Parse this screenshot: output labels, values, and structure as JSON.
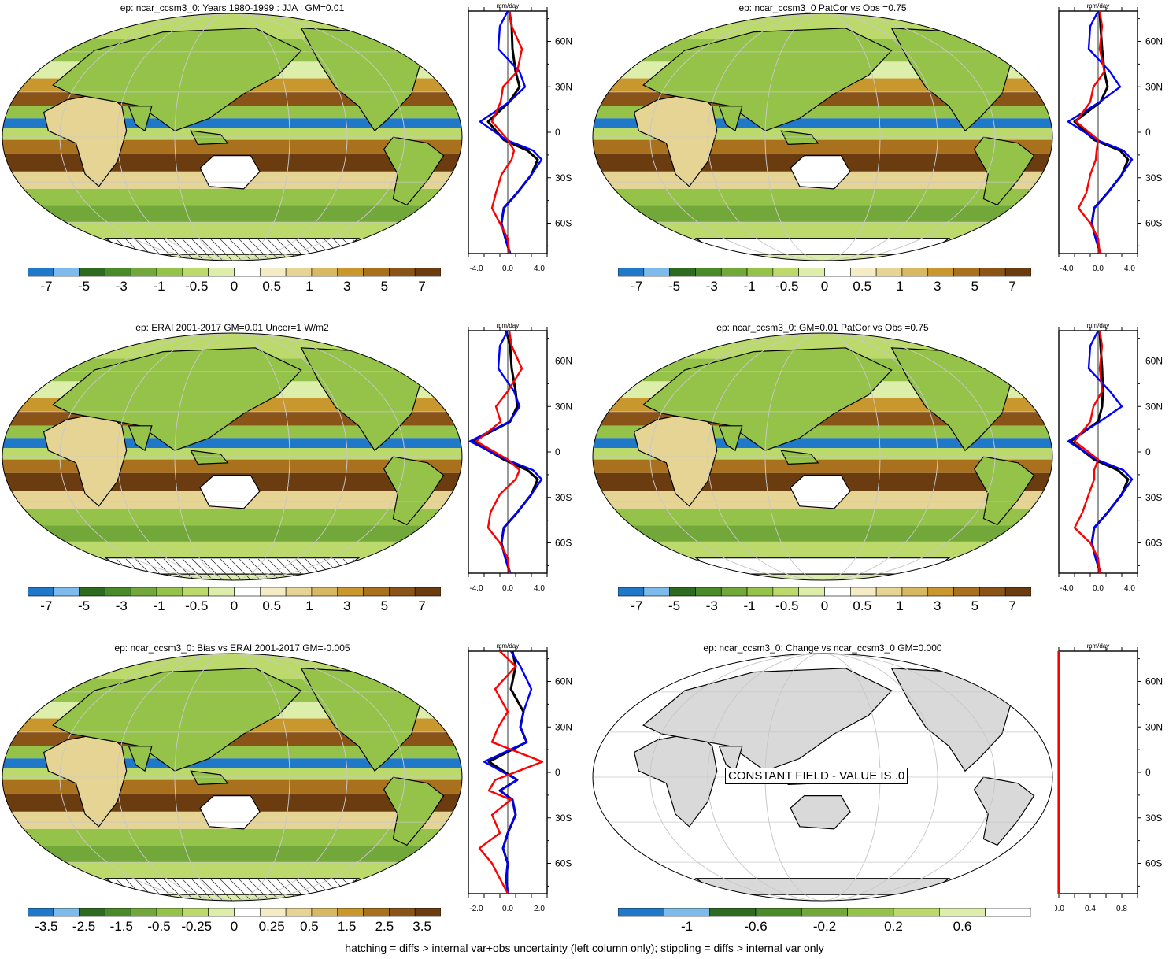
{
  "panels": [
    {
      "id": "p1",
      "title": "ep: ncar_ccsm3_0: Years 1980-1999 : JJA : GM=0.01",
      "colorbar": {
        "colors": [
          "#1f78c8",
          "#7dbcea",
          "#2e6a1f",
          "#4a8a2a",
          "#72a83a",
          "#95c34a",
          "#bcd96c",
          "#ddeeaa",
          "#ffffff",
          "#f3ecc4",
          "#e6d494",
          "#d8b860",
          "#c8972e",
          "#a9711e",
          "#8a5418",
          "#6a3c10"
        ],
        "labels": [
          "-7",
          "-5",
          "-3",
          "-1",
          "-0.5",
          "0",
          "0.5",
          "1",
          "3",
          "5",
          "7"
        ]
      },
      "profile": {
        "unit": "mm/day",
        "xticks": [
          "-4.0",
          "0.0",
          "4.0"
        ],
        "xlim": [
          -5,
          5
        ],
        "yticks": [
          "60N",
          "30N",
          "0",
          "30S",
          "60S"
        ],
        "show_overlay": false
      }
    },
    {
      "id": "p2",
      "title": "ep: ncar_ccsm3_0 PatCor vs Obs =0.75",
      "colorbar": {
        "colors": [
          "#1f78c8",
          "#7dbcea",
          "#2e6a1f",
          "#4a8a2a",
          "#72a83a",
          "#95c34a",
          "#bcd96c",
          "#ddeeaa",
          "#ffffff",
          "#f3ecc4",
          "#e6d494",
          "#d8b860",
          "#c8972e",
          "#a9711e",
          "#8a5418",
          "#6a3c10"
        ],
        "labels": [
          "-7",
          "-5",
          "-3",
          "-1",
          "-0.5",
          "0",
          "0.5",
          "1",
          "3",
          "5",
          "7"
        ]
      },
      "profile": {
        "unit": "mm/day",
        "xticks": [
          "-4.0",
          "0.0",
          "4.0"
        ],
        "xlim": [
          -5,
          5
        ],
        "yticks": [
          "60N",
          "30N",
          "0",
          "30S",
          "60S"
        ]
      }
    },
    {
      "id": "p3",
      "title": "ep: ERAI 2001-2017 GM=0.01 Uncer=1 W/m2",
      "colorbar": {
        "colors": [
          "#1f78c8",
          "#7dbcea",
          "#2e6a1f",
          "#4a8a2a",
          "#72a83a",
          "#95c34a",
          "#bcd96c",
          "#ddeeaa",
          "#ffffff",
          "#f3ecc4",
          "#e6d494",
          "#d8b860",
          "#c8972e",
          "#a9711e",
          "#8a5418",
          "#6a3c10"
        ],
        "labels": [
          "-7",
          "-5",
          "-3",
          "-1",
          "-0.5",
          "0",
          "0.5",
          "1",
          "3",
          "5",
          "7"
        ]
      },
      "profile": {
        "unit": "mm/day",
        "xticks": [
          "-4.0",
          "0.0",
          "4.0"
        ],
        "xlim": [
          -5,
          5
        ],
        "yticks": [
          "60N",
          "30N",
          "0",
          "30S",
          "60S"
        ]
      }
    },
    {
      "id": "p4",
      "title": "ep: ncar_ccsm3_0: GM=0.01 PatCor vs Obs =0.75",
      "colorbar": {
        "colors": [
          "#1f78c8",
          "#7dbcea",
          "#2e6a1f",
          "#4a8a2a",
          "#72a83a",
          "#95c34a",
          "#bcd96c",
          "#ddeeaa",
          "#ffffff",
          "#f3ecc4",
          "#e6d494",
          "#d8b860",
          "#c8972e",
          "#a9711e",
          "#8a5418",
          "#6a3c10"
        ],
        "labels": [
          "-7",
          "-5",
          "-3",
          "-1",
          "-0.5",
          "0",
          "0.5",
          "1",
          "3",
          "5",
          "7"
        ]
      },
      "profile": {
        "unit": "mm/day",
        "xticks": [
          "-4.0",
          "0.0",
          "4.0"
        ],
        "xlim": [
          -5,
          5
        ],
        "yticks": [
          "60N",
          "30N",
          "0",
          "30S",
          "60S"
        ]
      }
    },
    {
      "id": "p5",
      "title": "ep: ncar_ccsm3_0: Bias vs ERAI 2001-2017 GM=-0.005",
      "colorbar": {
        "colors": [
          "#1f78c8",
          "#7dbcea",
          "#2e6a1f",
          "#4a8a2a",
          "#72a83a",
          "#95c34a",
          "#bcd96c",
          "#ddeeaa",
          "#ffffff",
          "#f3ecc4",
          "#e6d494",
          "#d8b860",
          "#c8972e",
          "#a9711e",
          "#8a5418",
          "#6a3c10"
        ],
        "labels": [
          "-3.5",
          "-2.5",
          "-1.5",
          "-0.5",
          "-0.25",
          "0",
          "0.25",
          "0.5",
          "1.5",
          "2.5",
          "3.5"
        ]
      },
      "profile": {
        "unit": "mm/day",
        "xticks": [
          "-2.0",
          "0.0",
          "2.0"
        ],
        "xlim": [
          -2.5,
          2.5
        ],
        "yticks": [
          "60N",
          "30N",
          "0",
          "30S",
          "60S"
        ]
      }
    },
    {
      "id": "p6",
      "title": "ep: ncar_ccsm3_0: Change vs ncar_ccsm3_0 GM=0.000",
      "overlay_text": "CONSTANT FIELD - VALUE IS .0",
      "colorbar": {
        "colors": [
          "#1f78c8",
          "#7dbcea",
          "#2e6a1f",
          "#4a8a2a",
          "#72a83a",
          "#95c34a",
          "#bcd96c",
          "#ddeeaa",
          "#ffffff"
        ],
        "labels": [
          "-1",
          "-0.6",
          "-0.2",
          "0.2",
          "0.6"
        ]
      },
      "profile": {
        "unit": "mm/day",
        "xticks": [
          "0.0",
          "0.4",
          "0.8"
        ],
        "xlim": [
          0,
          1
        ],
        "yticks": [
          "60N",
          "30N",
          "0",
          "30S",
          "60S"
        ]
      }
    }
  ],
  "footer": "hatching = diffs > internal var+obs uncertainty (left column only); stippling = diffs > internal var only",
  "chart_data": [
    {
      "type": "line",
      "title": "ep: ncar_ccsm3_0: Years 1980-1999 : JJA : GM=0.01",
      "xlabel": "mm/day",
      "xlim": [
        -5,
        5
      ],
      "series": [
        {
          "color": "#000000",
          "x": [
            0.2,
            0.5,
            0.6,
            1.0,
            1.5,
            0.2,
            -2.5,
            -0.5,
            2.5,
            3.8,
            3.0,
            1.2,
            -0.5,
            -0.8,
            -0.3,
            0.3
          ],
          "y": [
            80,
            70,
            55,
            40,
            30,
            20,
            7,
            -5,
            -12,
            -18,
            -28,
            -40,
            -50,
            -60,
            -70,
            -80
          ]
        },
        {
          "color": "#0000ff",
          "x": [
            0.0,
            -1.0,
            -1.2,
            1.5,
            2.2,
            0.2,
            -3.5,
            -0.2,
            3.2,
            4.3,
            3.0,
            1.2,
            -0.5,
            -0.8,
            -0.3,
            0.3
          ],
          "y": [
            80,
            70,
            55,
            40,
            30,
            20,
            7,
            -5,
            -12,
            -18,
            -28,
            -40,
            -50,
            -60,
            -70,
            -80
          ]
        },
        {
          "color": "#ff0000",
          "x": [
            0.2,
            0.5,
            1.8,
            1.2,
            -0.6,
            -0.9,
            -2.0,
            0.0,
            0.8,
            0.5,
            -0.8,
            -1.5,
            -2.0,
            -1.0,
            0.0,
            0.2
          ],
          "y": [
            80,
            70,
            55,
            40,
            30,
            20,
            7,
            -5,
            -12,
            -18,
            -28,
            -40,
            -50,
            -60,
            -70,
            -80
          ]
        }
      ]
    },
    {
      "type": "line",
      "title": "ep: ncar_ccsm3_0 PatCor vs Obs =0.75",
      "xlabel": "mm/day",
      "xlim": [
        -5,
        5
      ],
      "series": [
        {
          "color": "#000000",
          "x": [
            0.2,
            0.3,
            0.5,
            0.8,
            1.2,
            0.3,
            -3.0,
            -0.5,
            2.8,
            3.8,
            3.0,
            1.2,
            -0.5,
            -0.8,
            -0.3,
            0.3
          ],
          "y": [
            80,
            70,
            55,
            40,
            30,
            20,
            7,
            -5,
            -12,
            -18,
            -28,
            -40,
            -50,
            -60,
            -70,
            -80
          ]
        },
        {
          "color": "#0000ff",
          "x": [
            0.0,
            -1.0,
            -1.2,
            1.5,
            2.8,
            0.2,
            -3.8,
            -0.2,
            3.2,
            4.3,
            3.0,
            1.2,
            -0.5,
            -0.8,
            -0.3,
            0.3
          ],
          "y": [
            80,
            70,
            55,
            40,
            30,
            20,
            7,
            -5,
            -12,
            -18,
            -28,
            -40,
            -50,
            -60,
            -70,
            -80
          ]
        },
        {
          "color": "#ff0000",
          "x": [
            0.2,
            0.5,
            0.2,
            0.8,
            -0.6,
            -1.0,
            -2.8,
            0.0,
            -0.2,
            -0.3,
            -1.0,
            -1.5,
            -2.5,
            -1.0,
            0.0,
            0.2
          ],
          "y": [
            80,
            70,
            55,
            40,
            30,
            20,
            7,
            -5,
            -12,
            -18,
            -28,
            -40,
            -50,
            -60,
            -70,
            -80
          ]
        }
      ]
    },
    {
      "type": "line",
      "title": "ep: ERAI 2001-2017 GM=0.01 Uncer=1 W/m2",
      "xlabel": "mm/day",
      "xlim": [
        -5,
        5
      ],
      "series": [
        {
          "color": "#000000",
          "x": [
            -0.2,
            0.3,
            0.5,
            1.0,
            1.2,
            0.3,
            -4.5,
            -0.5,
            2.5,
            3.8,
            3.0,
            1.2,
            -0.5,
            -0.8,
            -0.3,
            0.3
          ],
          "y": [
            80,
            70,
            55,
            40,
            30,
            20,
            7,
            -5,
            -12,
            -18,
            -28,
            -40,
            -50,
            -60,
            -70,
            -80
          ]
        },
        {
          "color": "#0000ff",
          "x": [
            0.0,
            -1.0,
            -1.2,
            0.8,
            1.5,
            0.2,
            -4.8,
            -0.2,
            3.2,
            4.3,
            3.0,
            1.2,
            -0.5,
            -0.8,
            -0.3,
            0.3
          ],
          "y": [
            80,
            70,
            55,
            40,
            30,
            20,
            7,
            -5,
            -12,
            -18,
            -28,
            -40,
            -50,
            -60,
            -70,
            -80
          ]
        },
        {
          "color": "#ff0000",
          "x": [
            0.2,
            0.5,
            1.8,
            0.0,
            -1.5,
            -0.9,
            -4.0,
            0.0,
            1.5,
            1.0,
            -1.0,
            -2.2,
            -2.5,
            -1.0,
            0.0,
            0.2
          ],
          "y": [
            80,
            70,
            55,
            40,
            30,
            20,
            7,
            -5,
            -12,
            -18,
            -28,
            -40,
            -50,
            -60,
            -70,
            -80
          ]
        }
      ]
    },
    {
      "type": "line",
      "title": "ep: ncar_ccsm3_0: GM=0.01 PatCor vs Obs =0.75",
      "xlabel": "mm/day",
      "xlim": [
        -5,
        5
      ],
      "series": [
        {
          "color": "#000000",
          "x": [
            0.2,
            0.3,
            0.5,
            0.6,
            0.5,
            0.0,
            -3.5,
            -0.5,
            2.5,
            3.8,
            3.0,
            1.2,
            -0.5,
            -0.8,
            -0.3,
            0.3
          ],
          "y": [
            80,
            70,
            55,
            40,
            30,
            20,
            7,
            -5,
            -12,
            -18,
            -28,
            -40,
            -50,
            -60,
            -70,
            -80
          ]
        },
        {
          "color": "#0000ff",
          "x": [
            0.0,
            -1.0,
            -1.2,
            1.5,
            3.0,
            0.2,
            -3.8,
            -0.2,
            3.2,
            4.3,
            3.0,
            1.2,
            -0.5,
            -0.8,
            -0.3,
            0.3
          ],
          "y": [
            80,
            70,
            55,
            40,
            30,
            20,
            7,
            -5,
            -12,
            -18,
            -28,
            -40,
            -50,
            -60,
            -70,
            -80
          ]
        },
        {
          "color": "#ff0000",
          "x": [
            0.2,
            0.5,
            0.2,
            0.5,
            -0.6,
            -1.0,
            -3.0,
            0.0,
            -0.5,
            -0.5,
            -1.2,
            -2.0,
            -3.0,
            -1.0,
            0.0,
            0.2
          ],
          "y": [
            80,
            70,
            55,
            40,
            30,
            20,
            7,
            -5,
            -12,
            -18,
            -28,
            -40,
            -50,
            -60,
            -70,
            -80
          ]
        }
      ]
    },
    {
      "type": "line",
      "title": "ep: ncar_ccsm3_0: Bias vs ERAI 2001-2017 GM=-0.005",
      "xlabel": "mm/day",
      "xlim": [
        -2.5,
        2.5
      ],
      "series": [
        {
          "color": "#000000",
          "x": [
            0.3,
            0.5,
            0.2,
            1.0,
            0.8,
            1.2,
            -1.2,
            0.6,
            -0.5,
            0.3,
            0.5,
            0.0,
            -0.3,
            0.0,
            -0.1,
            0.0
          ],
          "y": [
            80,
            70,
            55,
            40,
            30,
            20,
            7,
            -5,
            -12,
            -18,
            -28,
            -40,
            -50,
            -60,
            -70,
            -80
          ]
        },
        {
          "color": "#0000ff",
          "x": [
            0.2,
            0.8,
            1.5,
            1.0,
            0.8,
            1.2,
            -1.5,
            0.6,
            -0.5,
            0.3,
            0.5,
            0.0,
            -0.3,
            0.0,
            -0.1,
            0.0
          ],
          "y": [
            80,
            70,
            55,
            40,
            30,
            20,
            7,
            -5,
            -12,
            -18,
            -28,
            -40,
            -50,
            -60,
            -70,
            -80
          ]
        },
        {
          "color": "#ff0000",
          "x": [
            -0.5,
            0.5,
            -0.8,
            0.0,
            -0.6,
            -1.0,
            2.2,
            -0.8,
            -1.2,
            0.2,
            -1.0,
            -0.5,
            -1.8,
            -1.0,
            -0.5,
            0.0
          ],
          "y": [
            80,
            70,
            55,
            40,
            30,
            20,
            7,
            -5,
            -12,
            -18,
            -28,
            -40,
            -50,
            -60,
            -70,
            -80
          ]
        }
      ]
    },
    {
      "type": "line",
      "title": "ep: ncar_ccsm3_0: Change vs ncar_ccsm3_0 GM=0.000",
      "xlabel": "mm/day",
      "xlim": [
        0,
        1
      ],
      "series": [
        {
          "color": "#000000",
          "x": [
            0,
            0
          ],
          "y": [
            80,
            -80
          ]
        },
        {
          "color": "#0000ff",
          "x": [
            0,
            0
          ],
          "y": [
            80,
            -80
          ]
        },
        {
          "color": "#ff0000",
          "x": [
            0,
            0
          ],
          "y": [
            80,
            -80
          ]
        }
      ]
    }
  ]
}
